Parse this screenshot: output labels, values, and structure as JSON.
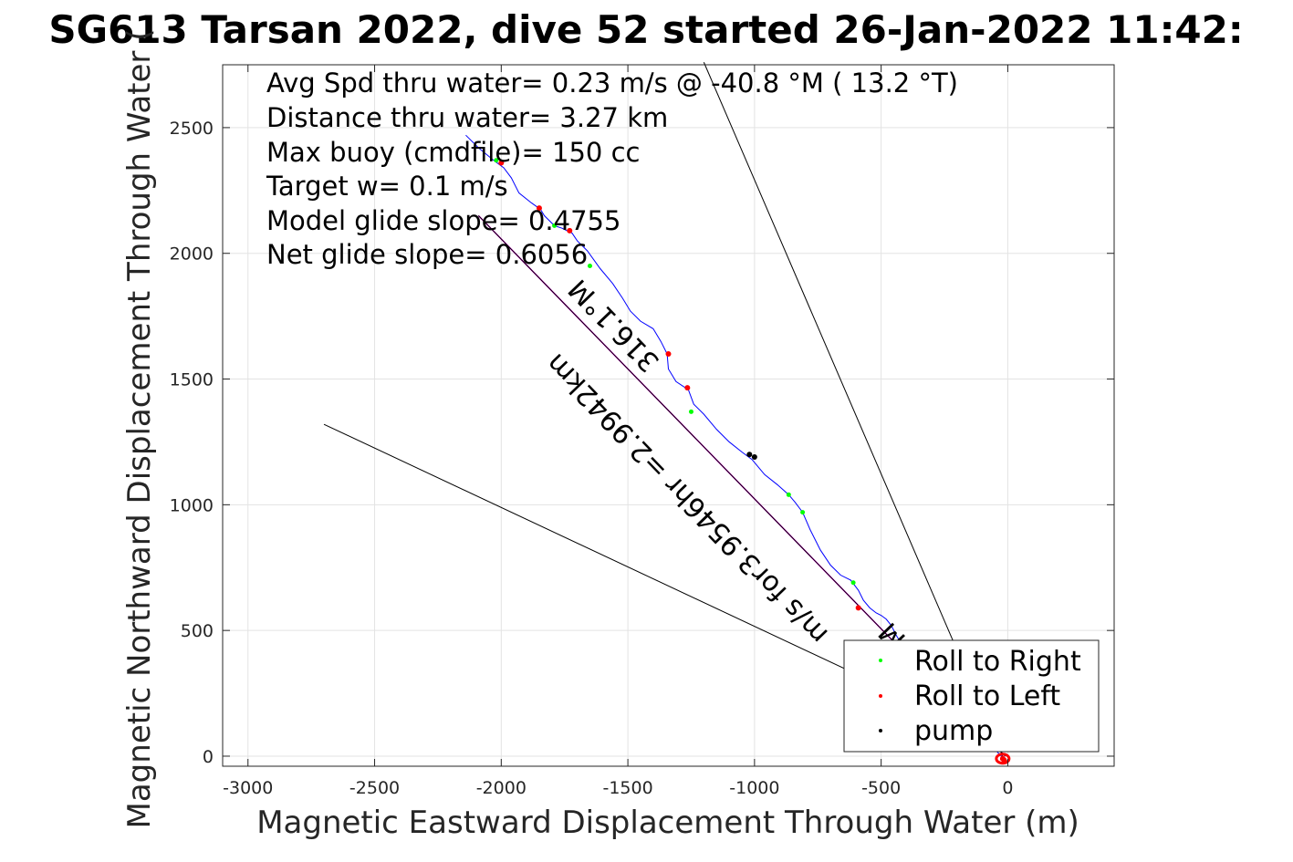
{
  "chart_data": {
    "type": "line",
    "title": "SG613 Tarsan 2022, dive 52 started 26-Jan-2022 11:42:",
    "xlabel": "Magnetic Eastward Displacement Through Water (m)",
    "ylabel": "Magnetic Northward Displacement Through Water (",
    "xlim": [
      -3100,
      420
    ],
    "ylim": [
      -40,
      2750
    ],
    "xticks": [
      -3000,
      -2500,
      -2000,
      -1500,
      -1000,
      -500,
      0
    ],
    "yticks": [
      0,
      500,
      1000,
      1500,
      2000,
      2500
    ],
    "grid": true,
    "legend_position": "bottom-right",
    "annotations": [
      "Avg Spd thru water=  0.23 m/s @ -40.8 °M ( 13.2 °T)",
      "Distance thru water=  3.27 km",
      "Max buoy (cmdfile)= 150 cc",
      "Target w= 0.1 m/s",
      "Model glide slope= 0.4755",
      "Net glide slope= 0.6056"
    ],
    "slanted_labels": [
      "316.1°M",
      "m/s for3.9546hr =2.9942km",
      "M"
    ],
    "track": {
      "color": "#0000ff",
      "x": [
        -2140,
        -2090,
        -2030,
        -1990,
        -1960,
        -1930,
        -1880,
        -1845,
        -1830,
        -1790,
        -1760,
        -1720,
        -1700,
        -1660,
        -1610,
        -1560,
        -1520,
        -1490,
        -1450,
        -1400,
        -1370,
        -1345,
        -1340,
        -1310,
        -1280,
        -1262,
        -1240,
        -1200,
        -1150,
        -1100,
        -1050,
        -1010,
        -960,
        -910,
        -865,
        -840,
        -810,
        -780,
        -740,
        -700,
        -660,
        -620,
        -590,
        -570,
        -545,
        -520,
        -500,
        -480,
        -460,
        -440,
        -410,
        -370,
        -330,
        -280,
        -230,
        -180,
        -140,
        -100,
        -80,
        -60,
        -40,
        -25,
        -20
      ],
      "y": [
        2470,
        2420,
        2370,
        2340,
        2300,
        2240,
        2200,
        2175,
        2150,
        2110,
        2100,
        2080,
        2050,
        2010,
        1940,
        1880,
        1820,
        1770,
        1730,
        1700,
        1650,
        1600,
        1540,
        1490,
        1470,
        1460,
        1400,
        1360,
        1300,
        1250,
        1210,
        1180,
        1120,
        1080,
        1040,
        1010,
        970,
        900,
        820,
        760,
        720,
        700,
        660,
        620,
        590,
        570,
        560,
        545,
        520,
        480,
        430,
        380,
        330,
        290,
        240,
        190,
        150,
        110,
        80,
        40,
        15,
        0,
        -10
      ]
    },
    "roll_right": {
      "name": "Roll to Right",
      "color": "#00ff00",
      "x": [
        -2020,
        -1790,
        -1650,
        -1250,
        -865,
        -810,
        -610
      ],
      "y": [
        2370,
        2110,
        1950,
        1370,
        1040,
        970,
        690
      ]
    },
    "roll_left": {
      "name": "Roll to Left",
      "color": "#ff0000",
      "x": [
        -2000,
        -1850,
        -1730,
        -1340,
        -1265,
        -590,
        -20,
        -15
      ],
      "y": [
        2360,
        2180,
        2090,
        1600,
        1465,
        590,
        -10,
        -15
      ]
    },
    "pump": {
      "name": "pump",
      "color": "#000000",
      "x": [
        -1020,
        -1000
      ],
      "y": [
        1200,
        1190
      ]
    },
    "lines": [
      {
        "color": "#ff00ff",
        "x": [
          -2090,
          -10
        ],
        "y": [
          2150,
          0
        ]
      },
      {
        "color": "#000000",
        "x": [
          -2090,
          -10
        ],
        "y": [
          2150,
          0
        ]
      },
      {
        "color": "#000000",
        "x": [
          -1200,
          -20
        ],
        "y": [
          2760,
          0
        ]
      },
      {
        "color": "#000000",
        "x": [
          -2700,
          -500
        ],
        "y": [
          1320,
          280
        ]
      }
    ]
  }
}
